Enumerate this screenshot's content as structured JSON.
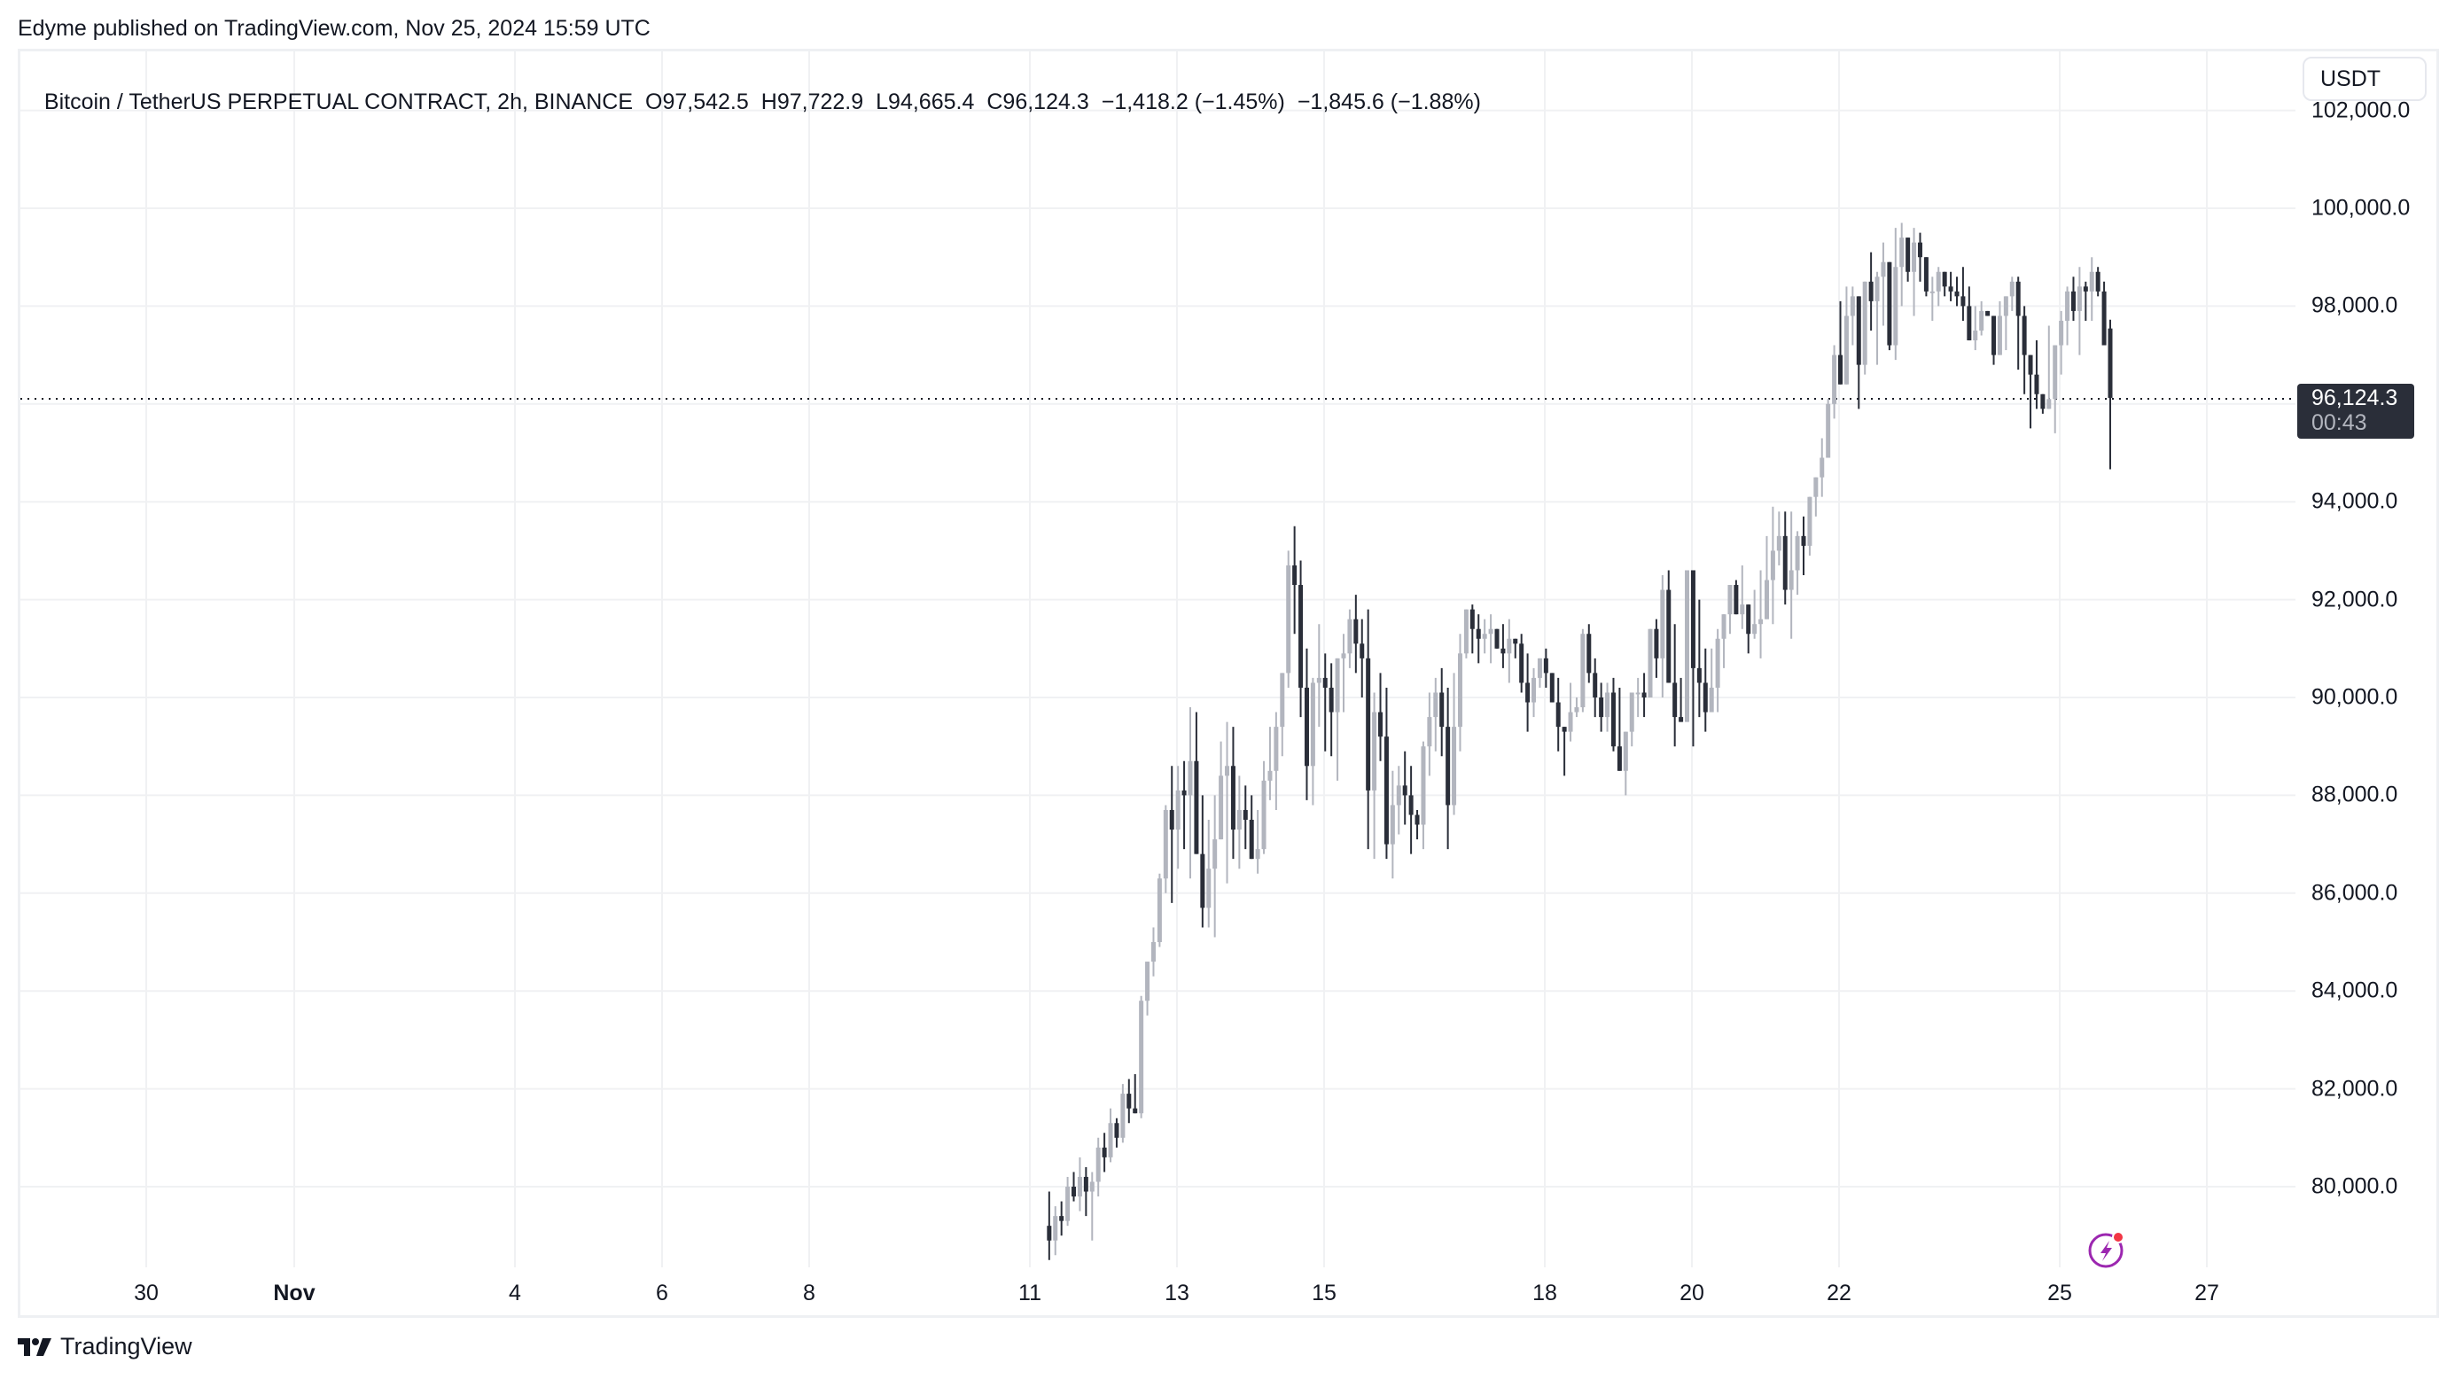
{
  "header": {
    "published_text": "Edyme published on TradingView.com, Nov 25, 2024 15:59 UTC"
  },
  "legend": {
    "symbol": "Bitcoin / TetherUS PERPETUAL CONTRACT, 2h, BINANCE",
    "open": "O97,542.5",
    "high": "H97,722.9",
    "low": "L94,665.4",
    "close": "C96,124.3",
    "change": "−1,418.2 (−1.45%)",
    "change2": "−1,845.6 (−1.88%)"
  },
  "currency_button": {
    "label": "USDT"
  },
  "last_price": {
    "price": "96,124.3",
    "countdown": "00:43"
  },
  "footer": {
    "brand": "TradingView"
  },
  "icons": {
    "flash": "lightning-bolt-icon",
    "logo": "tradingview-logo-icon"
  },
  "colors": {
    "up": "#b2b5be",
    "down": "#2a2e39",
    "grid": "#f0f1f3",
    "label_bg": "#2a2e39",
    "flash_icon": "#9c27b0",
    "flash_dot": "#f23645"
  },
  "chart_data": {
    "type": "candlestick",
    "title": "Bitcoin / TetherUS PERPETUAL CONTRACT, 2h, BINANCE",
    "xlabel": "",
    "ylabel": "USDT",
    "ylim": [
      78200,
      103000
    ],
    "y_ticks": [
      "102,000.0",
      "100,000.0",
      "98,000.0",
      "96,000.0",
      "94,000.0",
      "92,000.0",
      "90,000.0",
      "88,000.0",
      "86,000.0",
      "84,000.0",
      "82,000.0",
      "80,000.0"
    ],
    "x_ticks": [
      "30",
      "Nov",
      "4",
      "6",
      "8",
      "11",
      "13",
      "15",
      "18",
      "20",
      "22",
      "25",
      "27"
    ],
    "grid": true,
    "last_close": 96124.3,
    "start": "2024-11-10 14:00",
    "interval": "2h",
    "ohlc": [
      [
        79200,
        79900,
        78500,
        78900
      ],
      [
        78900,
        79600,
        78600,
        79400
      ],
      [
        79400,
        79700,
        79000,
        79300
      ],
      [
        79300,
        80200,
        79200,
        80000
      ],
      [
        80000,
        80300,
        79700,
        79800
      ],
      [
        79800,
        80600,
        79500,
        80200
      ],
      [
        80200,
        80400,
        79400,
        79900
      ],
      [
        79900,
        80300,
        78900,
        80100
      ],
      [
        80100,
        81000,
        79800,
        80800
      ],
      [
        80800,
        81100,
        80300,
        80600
      ],
      [
        80600,
        81600,
        80500,
        81300
      ],
      [
        81300,
        81400,
        80800,
        81000
      ],
      [
        81000,
        82100,
        80900,
        81900
      ],
      [
        81900,
        82200,
        81300,
        81600
      ],
      [
        81600,
        82300,
        81600,
        81500
      ],
      [
        81500,
        83900,
        81400,
        83800
      ],
      [
        83800,
        84500,
        83500,
        84600
      ],
      [
        84600,
        85300,
        84300,
        85000
      ],
      [
        85000,
        86400,
        84900,
        86300
      ],
      [
        86300,
        87800,
        86000,
        87700
      ],
      [
        87700,
        88600,
        85800,
        87300
      ],
      [
        87300,
        88600,
        86500,
        88100
      ],
      [
        88100,
        88700,
        86900,
        88000
      ],
      [
        88000,
        89800,
        86300,
        88700
      ],
      [
        88700,
        89700,
        86800,
        86800
      ],
      [
        86800,
        88000,
        85300,
        85700
      ],
      [
        85700,
        87500,
        85300,
        86500
      ],
      [
        86500,
        88000,
        85100,
        87100
      ],
      [
        87100,
        89100,
        87100,
        88400
      ],
      [
        88400,
        89500,
        86200,
        88600
      ],
      [
        88600,
        89400,
        86700,
        87300
      ],
      [
        87300,
        88400,
        86500,
        87700
      ],
      [
        87700,
        88200,
        86900,
        87500
      ],
      [
        87500,
        88000,
        86800,
        86700
      ],
      [
        86700,
        87700,
        86400,
        86900
      ],
      [
        86900,
        88700,
        86800,
        88300
      ],
      [
        88300,
        89400,
        87900,
        88500
      ],
      [
        88500,
        89700,
        87700,
        89400
      ],
      [
        89400,
        90100,
        88800,
        90500
      ],
      [
        90500,
        93000,
        90200,
        92700
      ],
      [
        92700,
        93500,
        91300,
        92300
      ],
      [
        92300,
        92800,
        89600,
        90200
      ],
      [
        90200,
        91000,
        87900,
        88600
      ],
      [
        88600,
        90400,
        87800,
        90300
      ],
      [
        90300,
        91500,
        89400,
        90400
      ],
      [
        90400,
        90900,
        88900,
        90200
      ],
      [
        90200,
        90700,
        88800,
        89700
      ],
      [
        89700,
        90700,
        88300,
        90800
      ],
      [
        90800,
        91300,
        89700,
        90900
      ],
      [
        90900,
        91800,
        90600,
        91600
      ],
      [
        91600,
        92100,
        90500,
        91100
      ],
      [
        91100,
        91600,
        90000,
        90800
      ],
      [
        90800,
        91800,
        86900,
        88100
      ],
      [
        88100,
        90100,
        86700,
        89700
      ],
      [
        89700,
        90500,
        88700,
        89200
      ],
      [
        89200,
        90200,
        86700,
        87000
      ],
      [
        87000,
        88500,
        86300,
        87800
      ],
      [
        87800,
        88600,
        87200,
        88200
      ],
      [
        88200,
        88900,
        87400,
        88000
      ],
      [
        88000,
        88600,
        86800,
        87600
      ],
      [
        87600,
        87700,
        87100,
        87400
      ],
      [
        87400,
        89100,
        86900,
        89000
      ],
      [
        89000,
        90100,
        88400,
        89600
      ],
      [
        89600,
        90400,
        88900,
        90100
      ],
      [
        90100,
        90600,
        88800,
        89400
      ],
      [
        89400,
        90200,
        86900,
        87800
      ],
      [
        87800,
        90500,
        87600,
        89400
      ],
      [
        89400,
        91300,
        88900,
        90900
      ],
      [
        90900,
        91700,
        90800,
        91800
      ],
      [
        91800,
        91900,
        90900,
        91400
      ],
      [
        91400,
        91700,
        90700,
        91200
      ],
      [
        91200,
        91600,
        90900,
        91300
      ],
      [
        91300,
        91700,
        90700,
        91400
      ],
      [
        91400,
        91300,
        91000,
        91000
      ],
      [
        91000,
        91500,
        90600,
        90900
      ],
      [
        90900,
        91600,
        90300,
        91200
      ],
      [
        91200,
        91200,
        90800,
        91100
      ],
      [
        91100,
        91300,
        90100,
        90300
      ],
      [
        90300,
        90900,
        89300,
        89900
      ],
      [
        89900,
        90600,
        89600,
        90400
      ],
      [
        90400,
        90800,
        90200,
        90800
      ],
      [
        90800,
        91000,
        90200,
        90500
      ],
      [
        90500,
        90500,
        90000,
        89900
      ],
      [
        89900,
        90400,
        88900,
        89400
      ],
      [
        89400,
        89300,
        88400,
        89300
      ],
      [
        89300,
        90300,
        89100,
        89700
      ],
      [
        89700,
        90000,
        89600,
        89800
      ],
      [
        89800,
        91400,
        89700,
        91300
      ],
      [
        91300,
        91500,
        90300,
        90500
      ],
      [
        90500,
        90800,
        89600,
        90000
      ],
      [
        90000,
        90300,
        89300,
        89600
      ],
      [
        89600,
        90300,
        89300,
        90100
      ],
      [
        90100,
        90400,
        88900,
        89000
      ],
      [
        89000,
        90200,
        88600,
        88500
      ],
      [
        88500,
        89300,
        88000,
        89300
      ],
      [
        89300,
        90100,
        89000,
        90100
      ],
      [
        90100,
        90400,
        89600,
        90100
      ],
      [
        90100,
        90500,
        89600,
        90000
      ],
      [
        90000,
        91000,
        90000,
        91400
      ],
      [
        91400,
        91600,
        90400,
        90800
      ],
      [
        90800,
        92500,
        90000,
        92200
      ],
      [
        92200,
        92600,
        90500,
        90300
      ],
      [
        90300,
        91500,
        89000,
        89600
      ],
      [
        89600,
        90400,
        89500,
        89500
      ],
      [
        89500,
        92600,
        89500,
        92600
      ],
      [
        92600,
        92100,
        89000,
        90600
      ],
      [
        90600,
        92000,
        89600,
        90300
      ],
      [
        90300,
        91000,
        89300,
        89700
      ],
      [
        89700,
        91000,
        89700,
        90200
      ],
      [
        90200,
        91400,
        89700,
        91200
      ],
      [
        91200,
        91600,
        90600,
        91700
      ],
      [
        91700,
        92100,
        91300,
        92300
      ],
      [
        92300,
        92400,
        91700,
        91700
      ],
      [
        91700,
        92700,
        91400,
        91900
      ],
      [
        91900,
        91600,
        90900,
        91300
      ],
      [
        91300,
        92200,
        91200,
        91500
      ],
      [
        91500,
        92600,
        90800,
        91600
      ],
      [
        91600,
        93300,
        91800,
        92400
      ],
      [
        92400,
        93900,
        91500,
        93000
      ],
      [
        93000,
        93800,
        92700,
        93300
      ],
      [
        93300,
        93800,
        91900,
        92200
      ],
      [
        92200,
        93800,
        91200,
        92600
      ],
      [
        92600,
        93400,
        92100,
        93300
      ],
      [
        93300,
        93700,
        92500,
        93100
      ],
      [
        93100,
        94000,
        92900,
        94100
      ],
      [
        94100,
        94500,
        93700,
        94500
      ],
      [
        94500,
        95300,
        94100,
        94900
      ],
      [
        94900,
        96100,
        94900,
        96000
      ],
      [
        96000,
        97200,
        95700,
        97000
      ],
      [
        97000,
        98100,
        96600,
        96400
      ],
      [
        96400,
        98400,
        96600,
        97800
      ],
      [
        97800,
        98400,
        97200,
        98200
      ],
      [
        98200,
        97700,
        95900,
        96800
      ],
      [
        96800,
        98500,
        96600,
        98500
      ],
      [
        98500,
        99100,
        97500,
        98100
      ],
      [
        98100,
        98700,
        96800,
        98600
      ],
      [
        98600,
        99300,
        97600,
        98900
      ],
      [
        98900,
        98700,
        97100,
        97200
      ],
      [
        97200,
        99600,
        96900,
        98800
      ],
      [
        98800,
        99700,
        98000,
        99400
      ],
      [
        99400,
        99300,
        98500,
        98700
      ],
      [
        98700,
        99600,
        97800,
        99300
      ],
      [
        99300,
        99500,
        98500,
        99000
      ],
      [
        99000,
        98800,
        98200,
        98300
      ],
      [
        98300,
        98600,
        97700,
        98300
      ],
      [
        98300,
        98800,
        98000,
        98700
      ],
      [
        98700,
        98600,
        98200,
        98400
      ],
      [
        98400,
        98700,
        98100,
        98300
      ],
      [
        98300,
        98600,
        98000,
        98200
      ],
      [
        98200,
        98800,
        97700,
        98000
      ],
      [
        98000,
        98400,
        97500,
        97300
      ],
      [
        97300,
        98000,
        97100,
        97500
      ],
      [
        97500,
        98100,
        97400,
        97900
      ],
      [
        97900,
        97900,
        97800,
        97800
      ],
      [
        97800,
        97700,
        96800,
        97000
      ],
      [
        97000,
        98100,
        97000,
        97800
      ],
      [
        97800,
        98200,
        97100,
        98200
      ],
      [
        98200,
        98600,
        97900,
        98500
      ],
      [
        98500,
        98600,
        96700,
        97800
      ],
      [
        97800,
        98000,
        96200,
        97000
      ],
      [
        97000,
        96900,
        95500,
        96600
      ],
      [
        96600,
        97300,
        95900,
        96200
      ],
      [
        96200,
        95900,
        95800,
        95900
      ],
      [
        95900,
        97600,
        95900,
        96100
      ],
      [
        96100,
        96400,
        95400,
        97200
      ],
      [
        97200,
        97900,
        96600,
        97700
      ],
      [
        97700,
        98400,
        97200,
        98300
      ],
      [
        98300,
        98600,
        97700,
        97900
      ],
      [
        97900,
        98800,
        97000,
        98400
      ],
      [
        98400,
        98500,
        97700,
        98300
      ],
      [
        98300,
        99000,
        97700,
        98700
      ],
      [
        98700,
        98800,
        98200,
        98300
      ],
      [
        98300,
        98500,
        97200,
        97200
      ],
      [
        97542.5,
        97722.9,
        94665.4,
        96124.3
      ]
    ]
  }
}
